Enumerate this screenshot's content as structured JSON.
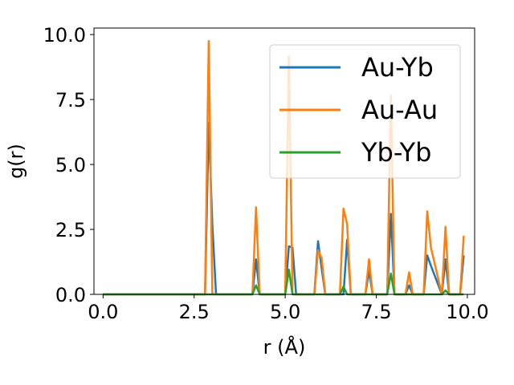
{
  "chart_data": {
    "type": "line",
    "title": "",
    "xlabel": "r (Å)",
    "ylabel": "g(r)",
    "xlim": [
      -0.25,
      10.2
    ],
    "ylim": [
      0,
      10.25
    ],
    "xticks": [
      0.0,
      2.5,
      5.0,
      7.5,
      10.0
    ],
    "xtick_labels": [
      "0.0",
      "2.5",
      "5.0",
      "7.5",
      "10.0"
    ],
    "yticks": [
      0.0,
      2.5,
      5.0,
      7.5,
      10.0
    ],
    "ytick_labels": [
      "0.0",
      "2.5",
      "5.0",
      "7.5",
      "10.0"
    ],
    "legend_position": "top-right",
    "grid": false,
    "series": [
      {
        "name": "Au-Yb",
        "color": "#1f77b4",
        "x": [
          0.0,
          2.8,
          2.9,
          3.0,
          3.1,
          4.1,
          4.2,
          4.3,
          5.0,
          5.1,
          5.2,
          5.3,
          5.8,
          5.9,
          6.0,
          6.1,
          6.6,
          6.7,
          6.8,
          7.2,
          7.3,
          7.4,
          7.8,
          7.9,
          8.0,
          8.3,
          8.4,
          8.5,
          8.8,
          8.9,
          9.0,
          9.3,
          9.4,
          9.5,
          9.8,
          9.9
        ],
        "y": [
          0.0,
          0.0,
          6.6,
          2.7,
          0.0,
          0.0,
          1.35,
          0.0,
          0.0,
          1.85,
          1.8,
          0.0,
          0.0,
          2.05,
          1.0,
          0.0,
          0.0,
          2.1,
          0.0,
          0.0,
          0.9,
          0.0,
          0.0,
          3.1,
          0.0,
          0.0,
          0.35,
          0.0,
          0.0,
          1.5,
          1.1,
          0.0,
          1.35,
          0.0,
          0.0,
          1.5
        ]
      },
      {
        "name": "Au-Au",
        "color": "#ff7f0e",
        "x": [
          0.0,
          2.8,
          2.9,
          3.0,
          4.1,
          4.2,
          4.3,
          5.0,
          5.1,
          5.2,
          5.8,
          5.9,
          6.0,
          6.1,
          6.5,
          6.6,
          6.7,
          6.8,
          7.2,
          7.3,
          7.4,
          7.8,
          7.9,
          8.0,
          8.3,
          8.4,
          8.5,
          8.8,
          8.9,
          9.0,
          9.3,
          9.4,
          9.5,
          9.8,
          9.9
        ],
        "y": [
          0.0,
          0.0,
          9.75,
          0.0,
          0.0,
          3.35,
          0.0,
          0.0,
          9.15,
          0.0,
          0.0,
          1.7,
          1.4,
          0.0,
          0.0,
          3.3,
          2.7,
          0.0,
          0.0,
          1.35,
          0.0,
          0.0,
          7.65,
          0.0,
          0.0,
          0.85,
          0.0,
          0.0,
          3.2,
          1.8,
          0.0,
          2.6,
          0.0,
          0.0,
          2.25
        ]
      },
      {
        "name": "Yb-Yb",
        "color": "#2ca02c",
        "x": [
          0.0,
          4.1,
          4.2,
          4.3,
          5.0,
          5.1,
          5.2,
          6.5,
          6.6,
          6.7,
          7.8,
          7.9,
          8.0,
          9.3,
          9.4,
          9.5,
          9.9
        ],
        "y": [
          0.0,
          0.0,
          0.35,
          0.0,
          0.0,
          0.95,
          0.0,
          0.0,
          0.3,
          0.0,
          0.0,
          0.8,
          0.0,
          0.0,
          0.15,
          0.0,
          0.0
        ]
      }
    ]
  }
}
